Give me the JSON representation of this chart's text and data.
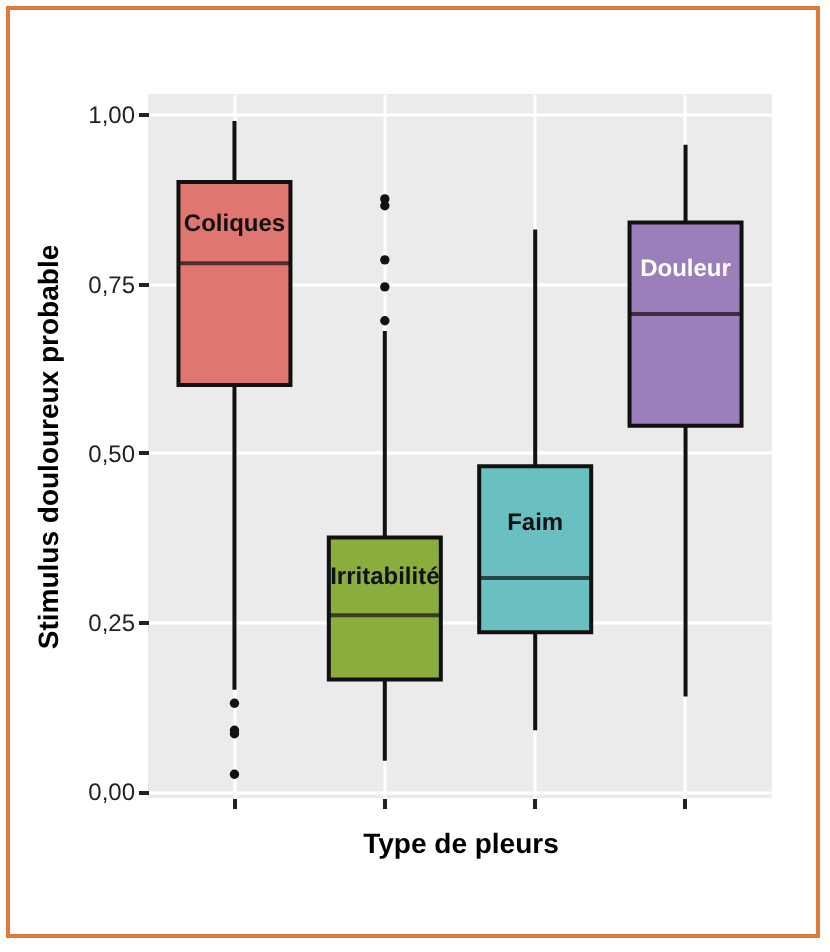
{
  "chart_data": {
    "type": "box",
    "xlabel": "Type de pleurs",
    "ylabel": "Stimulus douloureux probable",
    "categories": [
      "Coliques",
      "Irritabilité",
      "Faim",
      "Douleur"
    ],
    "colors": [
      "#e07670",
      "#8aad3e",
      "#6abfc1",
      "#9b7fba"
    ],
    "boxes": [
      {
        "low": 0.15,
        "q1": 0.6,
        "median": 0.78,
        "q3": 0.9,
        "high": 0.99,
        "outliers": [
          0.13,
          0.09,
          0.085,
          0.025
        ]
      },
      {
        "low": 0.045,
        "q1": 0.165,
        "median": 0.26,
        "q3": 0.375,
        "high": 0.68,
        "outliers": [
          0.695,
          0.745,
          0.785,
          0.865,
          0.875
        ]
      },
      {
        "low": 0.09,
        "q1": 0.235,
        "median": 0.315,
        "q3": 0.48,
        "high": 0.83
      },
      {
        "low": 0.14,
        "q1": 0.54,
        "median": 0.705,
        "q3": 0.84,
        "high": 0.955
      }
    ],
    "ylim": [
      -0.01,
      1.03
    ],
    "yticks": [
      {
        "value": 0,
        "label": "0,00"
      },
      {
        "value": 0.25,
        "label": "0,25"
      },
      {
        "value": 0.5,
        "label": "0,50"
      },
      {
        "value": 0.75,
        "label": "0,75"
      },
      {
        "value": 1,
        "label": "1,00"
      }
    ],
    "grid": true,
    "tick_labels": "y"
  }
}
